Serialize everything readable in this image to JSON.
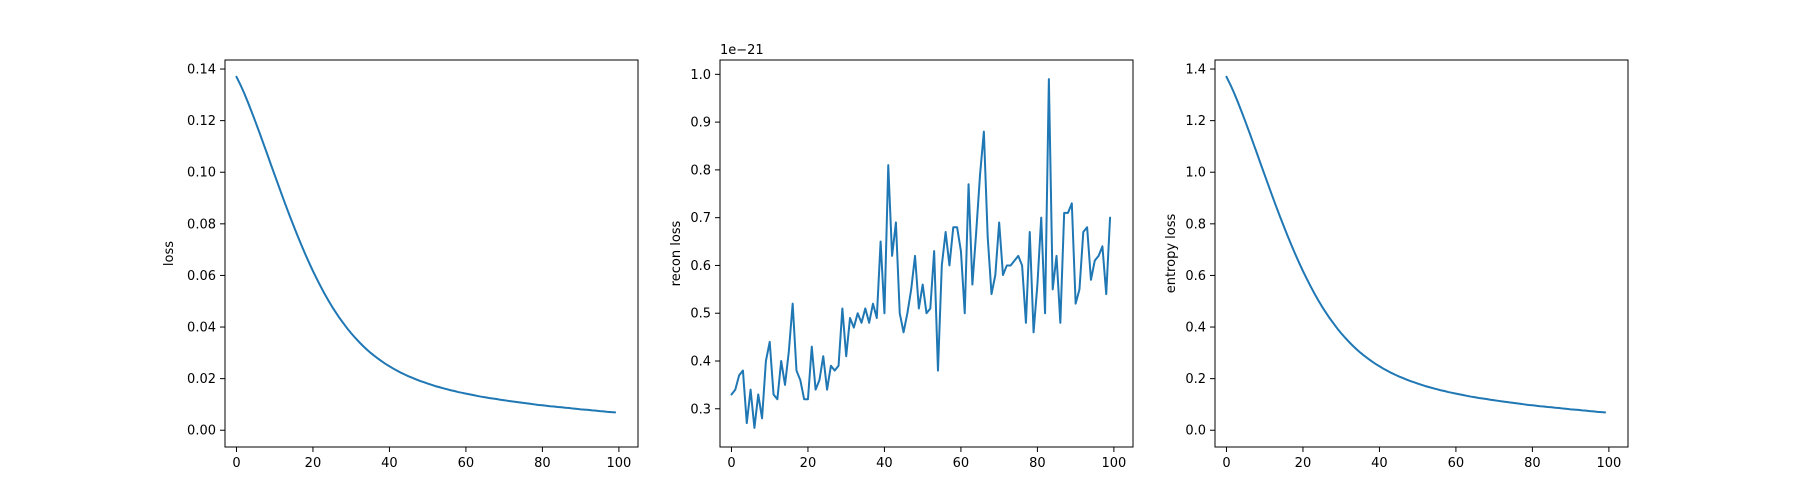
{
  "chart_data": [
    {
      "type": "line",
      "ylabel": "loss",
      "xlim": [
        -3,
        105
      ],
      "ylim": [
        -0.0065,
        0.1435
      ],
      "xticks": [
        0,
        20,
        40,
        60,
        80,
        100
      ],
      "xtick_labels": [
        "0",
        "20",
        "40",
        "60",
        "80",
        "100"
      ],
      "yticks": [
        0.0,
        0.02,
        0.04,
        0.06,
        0.08,
        0.1,
        0.12,
        0.14
      ],
      "ytick_labels": [
        "0.00",
        "0.02",
        "0.04",
        "0.06",
        "0.08",
        "0.10",
        "0.12",
        "0.14"
      ],
      "grid": false,
      "series": [
        {
          "color": "#1f77b4",
          "x": [
            0,
            1,
            2,
            3,
            4,
            5,
            6,
            7,
            8,
            9,
            10,
            11,
            12,
            13,
            14,
            15,
            16,
            17,
            18,
            19,
            20,
            21,
            22,
            23,
            24,
            25,
            26,
            27,
            28,
            29,
            30,
            31,
            32,
            33,
            34,
            35,
            36,
            37,
            38,
            39,
            40,
            41,
            42,
            43,
            44,
            45,
            46,
            47,
            48,
            49,
            50,
            51,
            52,
            53,
            54,
            55,
            56,
            57,
            58,
            59,
            60,
            61,
            62,
            63,
            64,
            65,
            66,
            67,
            68,
            69,
            70,
            71,
            72,
            73,
            74,
            75,
            76,
            77,
            78,
            79,
            80,
            81,
            82,
            83,
            84,
            85,
            86,
            87,
            88,
            89,
            90,
            91,
            92,
            93,
            94,
            95,
            96,
            97,
            98,
            99
          ],
          "values": [
            0.137,
            0.134,
            0.1307,
            0.1271,
            0.1233,
            0.1194,
            0.1154,
            0.1113,
            0.1072,
            0.103,
            0.0989,
            0.0948,
            0.0907,
            0.0867,
            0.0828,
            0.079,
            0.0753,
            0.0717,
            0.0682,
            0.0649,
            0.0617,
            0.0587,
            0.0558,
            0.053,
            0.0504,
            0.0479,
            0.0456,
            0.0434,
            0.0414,
            0.0394,
            0.0376,
            0.0359,
            0.0343,
            0.0328,
            0.0314,
            0.0301,
            0.0289,
            0.0278,
            0.0267,
            0.0257,
            0.0248,
            0.0239,
            0.0231,
            0.0223,
            0.0216,
            0.0209,
            0.0203,
            0.0197,
            0.0191,
            0.0186,
            0.0181,
            0.0176,
            0.0171,
            0.0167,
            0.0163,
            0.0159,
            0.0155,
            0.0152,
            0.0148,
            0.0145,
            0.0142,
            0.0139,
            0.0136,
            0.0133,
            0.013,
            0.0128,
            0.0125,
            0.0123,
            0.0121,
            0.0118,
            0.0116,
            0.0114,
            0.0112,
            0.011,
            0.0108,
            0.0106,
            0.0104,
            0.0102,
            0.01,
            0.0098,
            0.0097,
            0.0095,
            0.0093,
            0.0092,
            0.009,
            0.0089,
            0.0087,
            0.0086,
            0.0084,
            0.0083,
            0.0081,
            0.008,
            0.0079,
            0.0077,
            0.0076,
            0.0074,
            0.0073,
            0.0071,
            0.007,
            0.0069
          ]
        }
      ]
    },
    {
      "type": "line",
      "ylabel": "recon loss",
      "offset_text": "1e−21",
      "xlim": [
        -3,
        105
      ],
      "ylim": [
        0.22,
        1.03
      ],
      "xticks": [
        0,
        20,
        40,
        60,
        80,
        100
      ],
      "xtick_labels": [
        "0",
        "20",
        "40",
        "60",
        "80",
        "100"
      ],
      "yticks": [
        0.3,
        0.4,
        0.5,
        0.6,
        0.7,
        0.8,
        0.9,
        1.0
      ],
      "ytick_labels": [
        "0.3",
        "0.4",
        "0.5",
        "0.6",
        "0.7",
        "0.8",
        "0.9",
        "1.0"
      ],
      "grid": false,
      "series": [
        {
          "color": "#1f77b4",
          "x": [
            0,
            1,
            2,
            3,
            4,
            5,
            6,
            7,
            8,
            9,
            10,
            11,
            12,
            13,
            14,
            15,
            16,
            17,
            18,
            19,
            20,
            21,
            22,
            23,
            24,
            25,
            26,
            27,
            28,
            29,
            30,
            31,
            32,
            33,
            34,
            35,
            36,
            37,
            38,
            39,
            40,
            41,
            42,
            43,
            44,
            45,
            46,
            47,
            48,
            49,
            50,
            51,
            52,
            53,
            54,
            55,
            56,
            57,
            58,
            59,
            60,
            61,
            62,
            63,
            64,
            65,
            66,
            67,
            68,
            69,
            70,
            71,
            72,
            73,
            74,
            75,
            76,
            77,
            78,
            79,
            80,
            81,
            82,
            83,
            84,
            85,
            86,
            87,
            88,
            89,
            90,
            91,
            92,
            93,
            94,
            95,
            96,
            97,
            98,
            99
          ],
          "values": [
            0.33,
            0.34,
            0.37,
            0.38,
            0.27,
            0.34,
            0.26,
            0.33,
            0.28,
            0.4,
            0.44,
            0.33,
            0.32,
            0.4,
            0.35,
            0.42,
            0.52,
            0.38,
            0.36,
            0.32,
            0.32,
            0.43,
            0.34,
            0.36,
            0.41,
            0.34,
            0.39,
            0.38,
            0.39,
            0.51,
            0.41,
            0.49,
            0.47,
            0.5,
            0.48,
            0.51,
            0.48,
            0.52,
            0.49,
            0.65,
            0.5,
            0.81,
            0.62,
            0.69,
            0.5,
            0.46,
            0.5,
            0.55,
            0.62,
            0.51,
            0.56,
            0.5,
            0.51,
            0.63,
            0.38,
            0.6,
            0.67,
            0.6,
            0.68,
            0.68,
            0.63,
            0.5,
            0.77,
            0.56,
            0.67,
            0.79,
            0.88,
            0.66,
            0.54,
            0.58,
            0.69,
            0.58,
            0.6,
            0.6,
            0.61,
            0.62,
            0.6,
            0.48,
            0.67,
            0.46,
            0.56,
            0.7,
            0.5,
            0.99,
            0.55,
            0.62,
            0.48,
            0.71,
            0.71,
            0.73,
            0.52,
            0.55,
            0.67,
            0.68,
            0.57,
            0.61,
            0.62,
            0.64,
            0.54,
            0.7
          ]
        }
      ]
    },
    {
      "type": "line",
      "ylabel": "entropy loss",
      "xlim": [
        -3,
        105
      ],
      "ylim": [
        -0.065,
        1.435
      ],
      "xticks": [
        0,
        20,
        40,
        60,
        80,
        100
      ],
      "xtick_labels": [
        "0",
        "20",
        "40",
        "60",
        "80",
        "100"
      ],
      "yticks": [
        0.0,
        0.2,
        0.4,
        0.6,
        0.8,
        1.0,
        1.2,
        1.4
      ],
      "ytick_labels": [
        "0.0",
        "0.2",
        "0.4",
        "0.6",
        "0.8",
        "1.0",
        "1.2",
        "1.4"
      ],
      "grid": false,
      "series": [
        {
          "color": "#1f77b4",
          "x": [
            0,
            1,
            2,
            3,
            4,
            5,
            6,
            7,
            8,
            9,
            10,
            11,
            12,
            13,
            14,
            15,
            16,
            17,
            18,
            19,
            20,
            21,
            22,
            23,
            24,
            25,
            26,
            27,
            28,
            29,
            30,
            31,
            32,
            33,
            34,
            35,
            36,
            37,
            38,
            39,
            40,
            41,
            42,
            43,
            44,
            45,
            46,
            47,
            48,
            49,
            50,
            51,
            52,
            53,
            54,
            55,
            56,
            57,
            58,
            59,
            60,
            61,
            62,
            63,
            64,
            65,
            66,
            67,
            68,
            69,
            70,
            71,
            72,
            73,
            74,
            75,
            76,
            77,
            78,
            79,
            80,
            81,
            82,
            83,
            84,
            85,
            86,
            87,
            88,
            89,
            90,
            91,
            92,
            93,
            94,
            95,
            96,
            97,
            98,
            99
          ],
          "values": [
            1.37,
            1.34,
            1.307,
            1.271,
            1.233,
            1.194,
            1.154,
            1.113,
            1.072,
            1.03,
            0.989,
            0.948,
            0.907,
            0.867,
            0.828,
            0.79,
            0.753,
            0.717,
            0.682,
            0.649,
            0.617,
            0.587,
            0.558,
            0.53,
            0.504,
            0.479,
            0.456,
            0.434,
            0.414,
            0.394,
            0.376,
            0.359,
            0.343,
            0.328,
            0.314,
            0.301,
            0.289,
            0.278,
            0.267,
            0.257,
            0.248,
            0.239,
            0.231,
            0.223,
            0.216,
            0.209,
            0.203,
            0.197,
            0.191,
            0.186,
            0.181,
            0.176,
            0.171,
            0.167,
            0.163,
            0.159,
            0.155,
            0.152,
            0.148,
            0.145,
            0.142,
            0.139,
            0.136,
            0.133,
            0.13,
            0.128,
            0.125,
            0.123,
            0.121,
            0.118,
            0.116,
            0.114,
            0.112,
            0.11,
            0.108,
            0.106,
            0.104,
            0.102,
            0.1,
            0.098,
            0.097,
            0.095,
            0.093,
            0.092,
            0.09,
            0.089,
            0.087,
            0.086,
            0.084,
            0.083,
            0.081,
            0.08,
            0.079,
            0.077,
            0.076,
            0.074,
            0.073,
            0.071,
            0.07,
            0.069
          ]
        }
      ]
    }
  ]
}
